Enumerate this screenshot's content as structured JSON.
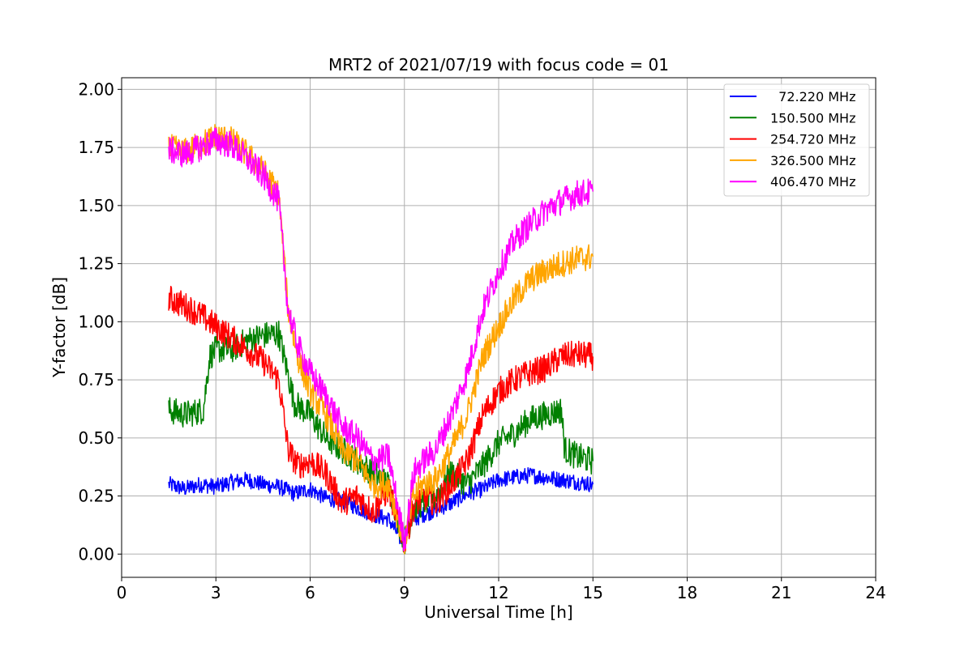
{
  "chart_data": {
    "type": "line",
    "title": "MRT2 of 2021/07/19 with focus code = 01",
    "xlabel": "Universal Time [h]",
    "ylabel": "Y-factor [dB]",
    "xlim": [
      0,
      24
    ],
    "ylim": [
      -0.1,
      2.05
    ],
    "xticks": [
      0,
      3,
      6,
      9,
      12,
      15,
      18,
      21,
      24
    ],
    "xtick_labels": [
      "0",
      "3",
      "6",
      "9",
      "12",
      "15",
      "18",
      "21",
      "24"
    ],
    "yticks": [
      0.0,
      0.25,
      0.5,
      0.75,
      1.0,
      1.25,
      1.5,
      1.75,
      2.0
    ],
    "ytick_labels": [
      "0.00",
      "0.25",
      "0.50",
      "0.75",
      "1.00",
      "1.25",
      "1.50",
      "1.75",
      "2.00"
    ],
    "grid": true,
    "legend_position": "top-right",
    "series": [
      {
        "name": "  72.220 MHz",
        "color": "#0000ff",
        "noise": 0.035,
        "x": [
          1.5,
          2.0,
          2.5,
          3.0,
          3.5,
          4.0,
          4.5,
          5.0,
          5.5,
          6.0,
          6.5,
          7.0,
          7.5,
          8.0,
          8.5,
          8.9,
          9.2,
          9.6,
          10.0,
          10.5,
          11.0,
          11.5,
          12.0,
          12.5,
          13.0,
          13.5,
          14.0,
          14.5,
          15.0
        ],
        "y": [
          0.3,
          0.28,
          0.3,
          0.29,
          0.31,
          0.32,
          0.3,
          0.29,
          0.26,
          0.28,
          0.24,
          0.23,
          0.2,
          0.17,
          0.15,
          0.06,
          0.14,
          0.17,
          0.19,
          0.22,
          0.26,
          0.28,
          0.32,
          0.33,
          0.34,
          0.33,
          0.32,
          0.31,
          0.3
        ]
      },
      {
        "name": "150.500 MHz",
        "color": "#008000",
        "noise": 0.06,
        "x": [
          1.5,
          2.0,
          2.6,
          2.8,
          3.0,
          3.5,
          4.0,
          4.5,
          5.0,
          5.5,
          6.0,
          6.5,
          7.0,
          7.5,
          8.0,
          8.5,
          9.0,
          9.3,
          9.6,
          10.0,
          10.5,
          11.0,
          11.5,
          12.0,
          12.5,
          13.0,
          13.5,
          14.0,
          14.1,
          14.5,
          15.0
        ],
        "y": [
          0.62,
          0.6,
          0.62,
          0.85,
          0.88,
          0.88,
          0.92,
          0.94,
          0.95,
          0.65,
          0.6,
          0.5,
          0.45,
          0.4,
          0.35,
          0.3,
          0.05,
          0.2,
          0.22,
          0.25,
          0.35,
          0.3,
          0.38,
          0.48,
          0.52,
          0.58,
          0.6,
          0.62,
          0.45,
          0.42,
          0.4
        ]
      },
      {
        "name": "254.720 MHz",
        "color": "#ff0000",
        "noise": 0.06,
        "x": [
          1.5,
          2.0,
          2.5,
          3.0,
          3.5,
          4.0,
          4.5,
          5.0,
          5.3,
          5.6,
          6.0,
          6.5,
          7.0,
          7.5,
          8.0,
          8.5,
          9.0,
          9.3,
          9.6,
          10.0,
          10.5,
          11.0,
          11.5,
          12.0,
          12.5,
          13.0,
          13.5,
          14.0,
          14.5,
          15.0
        ],
        "y": [
          1.1,
          1.07,
          1.03,
          0.98,
          0.93,
          0.88,
          0.83,
          0.75,
          0.45,
          0.38,
          0.4,
          0.35,
          0.22,
          0.25,
          0.18,
          0.28,
          0.05,
          0.2,
          0.25,
          0.22,
          0.3,
          0.4,
          0.6,
          0.7,
          0.75,
          0.78,
          0.8,
          0.85,
          0.86,
          0.85
        ]
      },
      {
        "name": "326.500 MHz",
        "color": "#ffa500",
        "noise": 0.06,
        "x": [
          1.5,
          2.0,
          2.5,
          3.0,
          3.5,
          4.0,
          4.5,
          5.0,
          5.3,
          5.6,
          6.0,
          6.5,
          7.0,
          7.5,
          8.0,
          8.5,
          9.0,
          9.3,
          9.6,
          10.0,
          10.5,
          11.0,
          11.5,
          12.0,
          12.5,
          13.0,
          13.5,
          14.0,
          14.5,
          15.0
        ],
        "y": [
          1.75,
          1.73,
          1.76,
          1.8,
          1.78,
          1.72,
          1.65,
          1.55,
          1.05,
          0.85,
          0.7,
          0.6,
          0.45,
          0.4,
          0.3,
          0.3,
          0.05,
          0.25,
          0.3,
          0.32,
          0.45,
          0.6,
          0.85,
          0.98,
          1.1,
          1.18,
          1.22,
          1.25,
          1.27,
          1.28
        ]
      },
      {
        "name": "406.470 MHz",
        "color": "#ff00ff",
        "noise": 0.06,
        "x": [
          1.5,
          2.0,
          2.5,
          3.0,
          3.5,
          4.0,
          4.5,
          5.0,
          5.3,
          5.6,
          6.0,
          6.5,
          7.0,
          7.5,
          8.0,
          8.5,
          9.0,
          9.3,
          9.6,
          10.0,
          10.5,
          11.0,
          11.5,
          12.0,
          12.5,
          13.0,
          13.5,
          14.0,
          14.5,
          15.0
        ],
        "y": [
          1.74,
          1.72,
          1.75,
          1.78,
          1.76,
          1.7,
          1.63,
          1.52,
          1.05,
          0.9,
          0.78,
          0.68,
          0.55,
          0.5,
          0.4,
          0.42,
          0.05,
          0.35,
          0.4,
          0.45,
          0.6,
          0.78,
          1.05,
          1.22,
          1.35,
          1.42,
          1.48,
          1.52,
          1.55,
          1.56
        ]
      }
    ]
  }
}
